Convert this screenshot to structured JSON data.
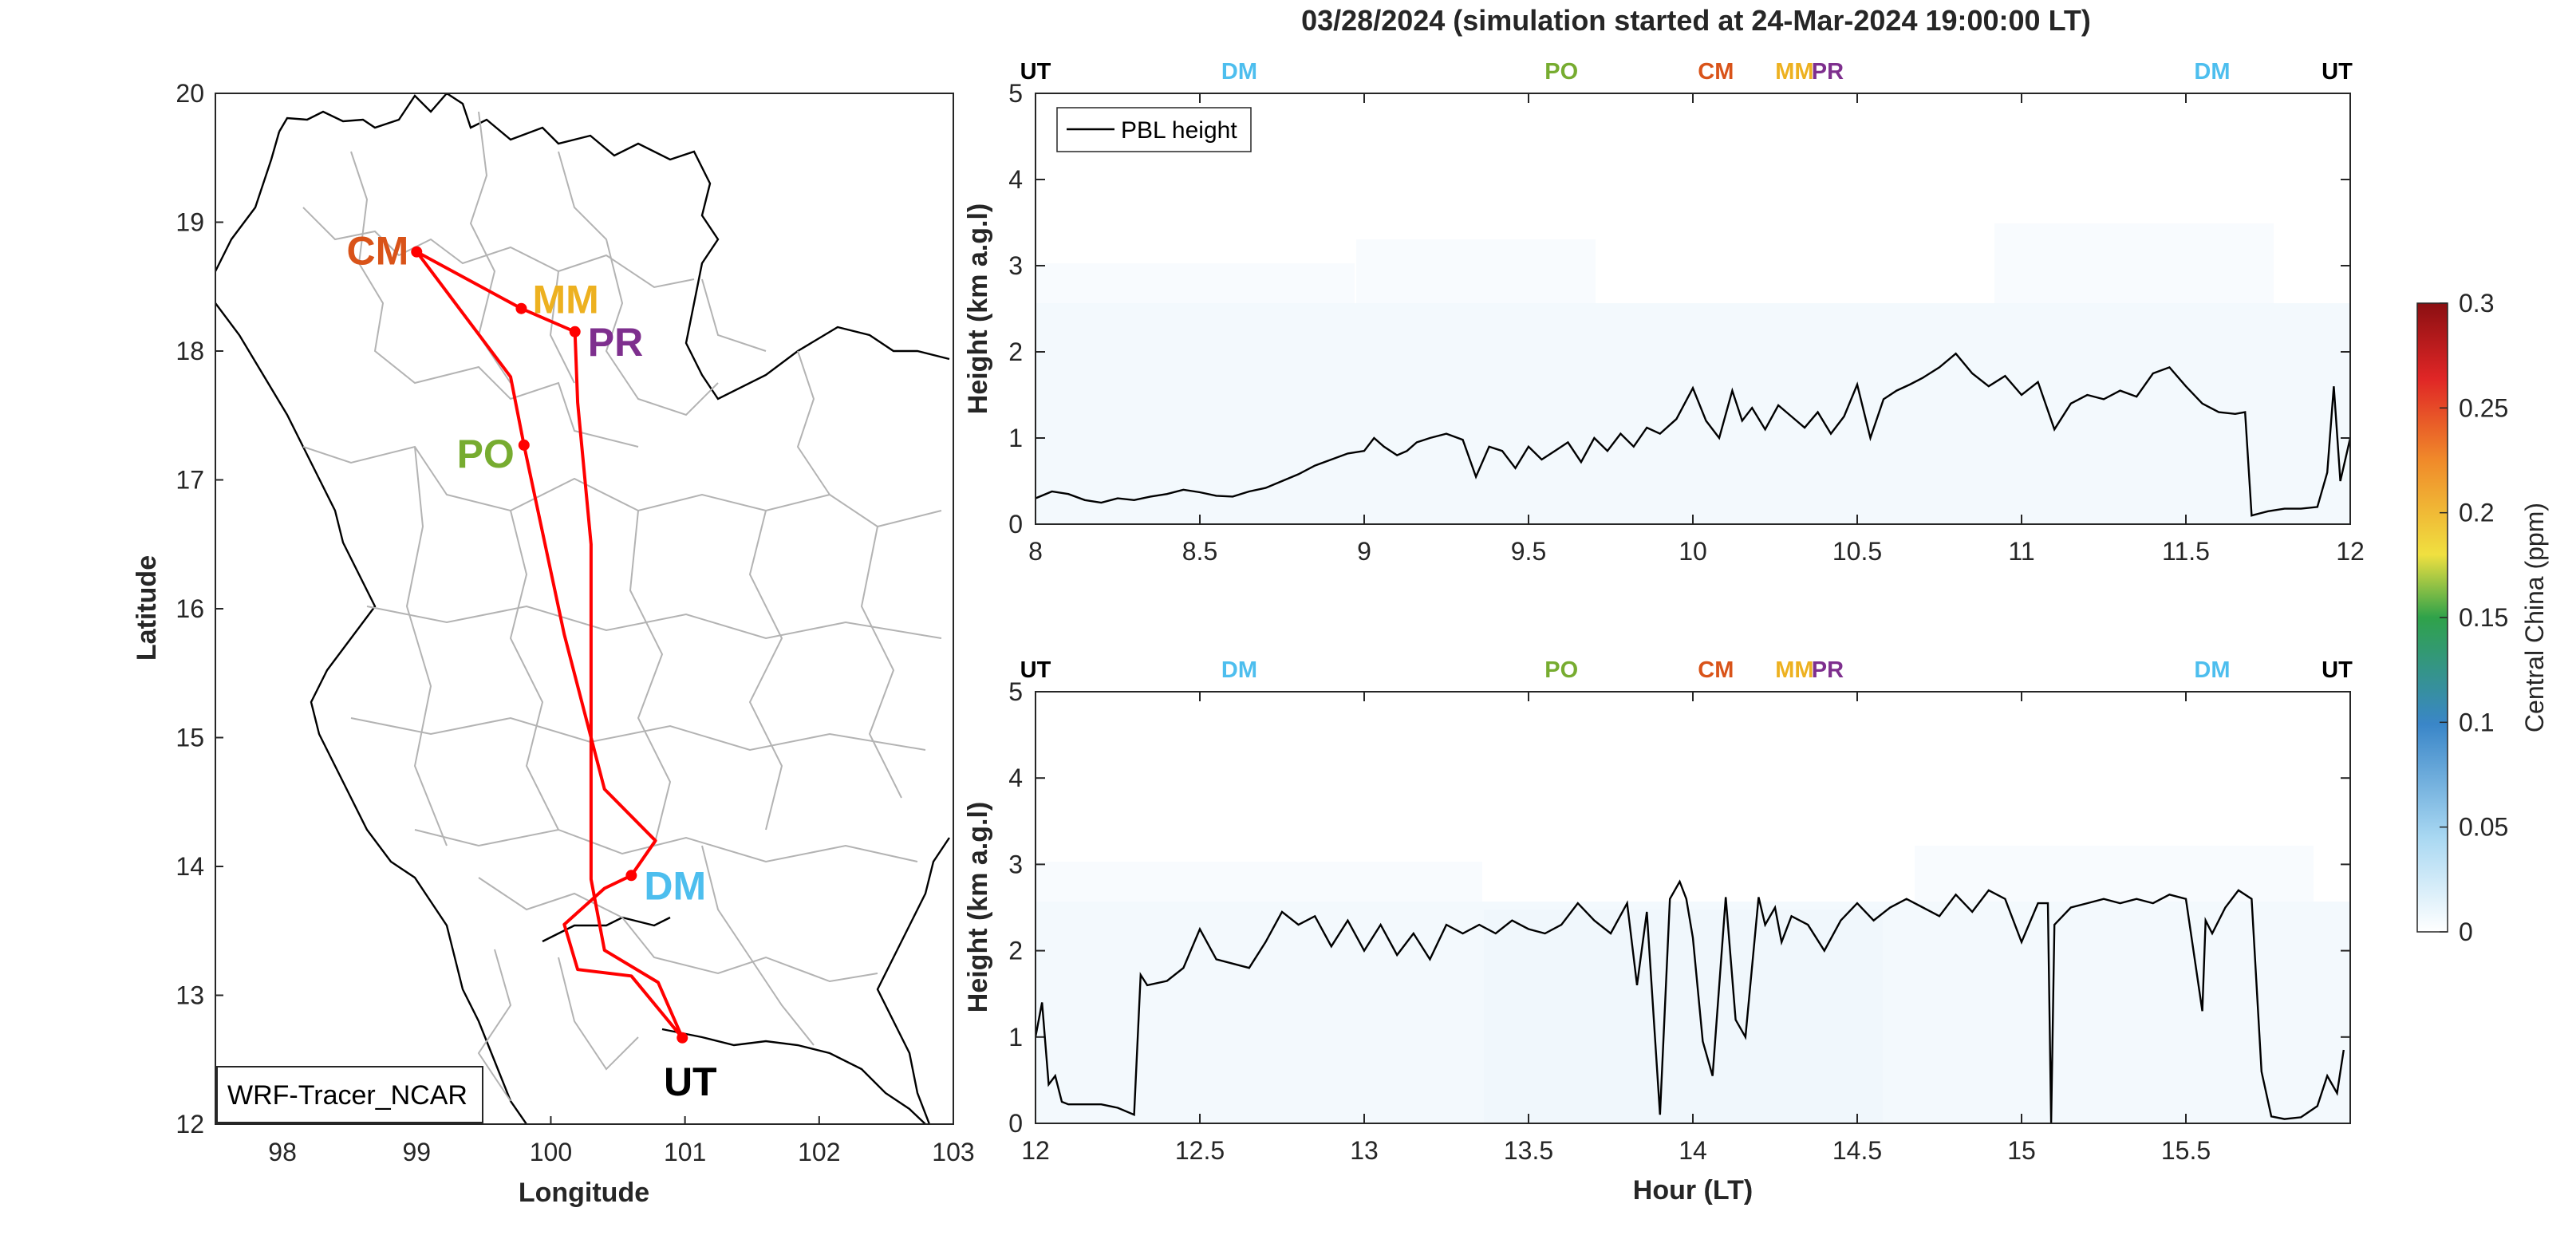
{
  "title": "03/28/2024 (simulation started at 24-Mar-2024 19:00:00 LT)",
  "colors": {
    "UT": "#000000",
    "DM": "#4DBEEE",
    "PO": "#77AC30",
    "CM": "#D95319",
    "MM": "#EDB120",
    "PR": "#7E2F8E",
    "route": "#FF0000",
    "pbl": "#000000"
  },
  "map": {
    "xlabel": "Longitude",
    "ylabel": "Latitude",
    "source_label": "WRF-Tracer_NCAR",
    "xlim": [
      97.5,
      103
    ],
    "ylim": [
      12,
      20
    ],
    "xticks": [
      "98",
      "99",
      "100",
      "101",
      "102",
      "103"
    ],
    "yticks": [
      "12",
      "13",
      "14",
      "15",
      "16",
      "17",
      "18",
      "19",
      "20"
    ],
    "sites": [
      {
        "code": "CM",
        "lon": 99.0,
        "lat": 18.77
      },
      {
        "code": "MM",
        "lon": 99.78,
        "lat": 18.33
      },
      {
        "code": "PR",
        "lon": 100.18,
        "lat": 18.15
      },
      {
        "code": "PO",
        "lon": 99.8,
        "lat": 17.27
      },
      {
        "code": "DM",
        "lon": 100.6,
        "lat": 13.93
      },
      {
        "code": "UT",
        "lon": 100.98,
        "lat": 12.67
      }
    ]
  },
  "chart_data": [
    {
      "type": "line",
      "panel": "top",
      "xlabel": "",
      "ylabel": "Height (km a.g.l)",
      "xlim": [
        8,
        12
      ],
      "ylim": [
        0,
        5
      ],
      "xticks": [
        "8",
        "8.5",
        "9",
        "9.5",
        "10",
        "10.5",
        "11",
        "11.5",
        "12"
      ],
      "yticks": [
        "0",
        "1",
        "2",
        "3",
        "4",
        "5"
      ],
      "legend": "PBL height",
      "colorbar_shading": "near zero",
      "markers": [
        {
          "label": "UT",
          "x": 8.0
        },
        {
          "label": "DM",
          "x": 8.62
        },
        {
          "label": "PO",
          "x": 9.6
        },
        {
          "label": "CM",
          "x": 10.07
        },
        {
          "label": "MM",
          "x": 10.3
        },
        {
          "label": "PR",
          "x": 10.4
        },
        {
          "label": "DM",
          "x": 11.58
        },
        {
          "label": "UT",
          "x": 11.96
        }
      ],
      "series": [
        {
          "name": "PBL height",
          "x": [
            8.0,
            8.05,
            8.1,
            8.15,
            8.2,
            8.25,
            8.3,
            8.35,
            8.4,
            8.45,
            8.5,
            8.55,
            8.6,
            8.65,
            8.7,
            8.75,
            8.8,
            8.85,
            8.9,
            8.95,
            9.0,
            9.03,
            9.06,
            9.1,
            9.13,
            9.16,
            9.2,
            9.25,
            9.3,
            9.34,
            9.38,
            9.42,
            9.46,
            9.5,
            9.54,
            9.58,
            9.62,
            9.66,
            9.7,
            9.74,
            9.78,
            9.82,
            9.86,
            9.9,
            9.95,
            10.0,
            10.04,
            10.08,
            10.12,
            10.15,
            10.18,
            10.22,
            10.26,
            10.3,
            10.34,
            10.38,
            10.42,
            10.46,
            10.5,
            10.54,
            10.58,
            10.62,
            10.66,
            10.7,
            10.75,
            10.8,
            10.85,
            10.9,
            10.95,
            11.0,
            11.05,
            11.1,
            11.15,
            11.2,
            11.25,
            11.3,
            11.35,
            11.4,
            11.45,
            11.5,
            11.55,
            11.6,
            11.65,
            11.68,
            11.7,
            11.72,
            11.75,
            11.8,
            11.85,
            11.9,
            11.93,
            11.95,
            11.97,
            12.0
          ],
          "values": [
            0.3,
            0.38,
            0.35,
            0.28,
            0.25,
            0.3,
            0.28,
            0.32,
            0.35,
            0.4,
            0.37,
            0.33,
            0.32,
            0.38,
            0.42,
            0.5,
            0.58,
            0.68,
            0.75,
            0.82,
            0.85,
            1.0,
            0.9,
            0.8,
            0.85,
            0.95,
            1.0,
            1.05,
            0.98,
            0.55,
            0.9,
            0.85,
            0.65,
            0.9,
            0.75,
            0.85,
            0.95,
            0.72,
            1.0,
            0.85,
            1.05,
            0.9,
            1.12,
            1.05,
            1.22,
            1.58,
            1.2,
            1.0,
            1.55,
            1.2,
            1.35,
            1.1,
            1.38,
            1.25,
            1.12,
            1.3,
            1.05,
            1.25,
            1.62,
            1.0,
            1.45,
            1.55,
            1.62,
            1.7,
            1.82,
            1.98,
            1.75,
            1.6,
            1.72,
            1.5,
            1.65,
            1.1,
            1.4,
            1.5,
            1.45,
            1.55,
            1.48,
            1.75,
            1.82,
            1.6,
            1.4,
            1.3,
            1.28,
            1.3,
            0.1,
            0.12,
            0.15,
            0.18,
            0.18,
            0.2,
            0.6,
            1.6,
            0.5,
            1.0
          ]
        }
      ]
    },
    {
      "type": "line",
      "panel": "bottom",
      "xlabel": "Hour (LT)",
      "ylabel": "Height (km a.g.l)",
      "xlim": [
        12,
        16
      ],
      "ylim": [
        0,
        5
      ],
      "xticks": [
        "12",
        "12.5",
        "13",
        "13.5",
        "14",
        "14.5",
        "15",
        "15.5"
      ],
      "yticks": [
        "0",
        "1",
        "2",
        "3",
        "4",
        "5"
      ],
      "colorbar_shading": "near zero",
      "markers": [
        {
          "label": "UT",
          "x": 12.0
        },
        {
          "label": "DM",
          "x": 12.62
        },
        {
          "label": "PO",
          "x": 13.6
        },
        {
          "label": "CM",
          "x": 14.07
        },
        {
          "label": "MM",
          "x": 14.3
        },
        {
          "label": "PR",
          "x": 14.4
        },
        {
          "label": "DM",
          "x": 15.58
        },
        {
          "label": "UT",
          "x": 15.96
        }
      ],
      "series": [
        {
          "name": "PBL height",
          "x": [
            12.0,
            12.02,
            12.04,
            12.06,
            12.08,
            12.1,
            12.15,
            12.2,
            12.25,
            12.3,
            12.32,
            12.34,
            12.4,
            12.45,
            12.5,
            12.55,
            12.6,
            12.65,
            12.7,
            12.75,
            12.8,
            12.85,
            12.9,
            12.95,
            13.0,
            13.05,
            13.1,
            13.15,
            13.2,
            13.25,
            13.3,
            13.35,
            13.4,
            13.45,
            13.5,
            13.55,
            13.6,
            13.65,
            13.7,
            13.75,
            13.8,
            13.83,
            13.86,
            13.9,
            13.93,
            13.96,
            13.98,
            14.0,
            14.03,
            14.06,
            14.1,
            14.13,
            14.16,
            14.2,
            14.22,
            14.25,
            14.27,
            14.3,
            14.35,
            14.4,
            14.45,
            14.5,
            14.55,
            14.6,
            14.65,
            14.7,
            14.75,
            14.8,
            14.85,
            14.9,
            14.95,
            15.0,
            15.05,
            15.08,
            15.09,
            15.1,
            15.15,
            15.2,
            15.25,
            15.3,
            15.35,
            15.4,
            15.45,
            15.5,
            15.55,
            15.56,
            15.58,
            15.62,
            15.66,
            15.7,
            15.73,
            15.76,
            15.8,
            15.85,
            15.9,
            15.93,
            15.96,
            15.98
          ],
          "values": [
            1.0,
            1.4,
            0.45,
            0.55,
            0.25,
            0.22,
            0.22,
            0.22,
            0.18,
            0.1,
            1.72,
            1.6,
            1.65,
            1.8,
            2.25,
            1.9,
            1.85,
            1.8,
            2.1,
            2.45,
            2.3,
            2.4,
            2.05,
            2.35,
            2.0,
            2.3,
            1.95,
            2.2,
            1.9,
            2.3,
            2.2,
            2.3,
            2.2,
            2.35,
            2.25,
            2.2,
            2.3,
            2.55,
            2.35,
            2.2,
            2.55,
            1.6,
            2.45,
            0.1,
            2.6,
            2.8,
            2.6,
            2.15,
            0.95,
            0.55,
            2.62,
            1.2,
            1.0,
            2.62,
            2.3,
            2.5,
            2.1,
            2.4,
            2.3,
            2.0,
            2.35,
            2.55,
            2.35,
            2.5,
            2.6,
            2.5,
            2.4,
            2.65,
            2.45,
            2.7,
            2.6,
            2.1,
            2.55,
            2.55,
            0.0,
            2.3,
            2.5,
            2.55,
            2.6,
            2.55,
            2.6,
            2.55,
            2.65,
            2.6,
            1.3,
            2.35,
            2.2,
            2.5,
            2.7,
            2.6,
            0.6,
            0.08,
            0.05,
            0.07,
            0.2,
            0.55,
            0.35,
            0.85
          ]
        }
      ]
    }
  ],
  "colorbar": {
    "label": "Central China (ppm)",
    "ticks": [
      "0",
      "0.05",
      "0.1",
      "0.15",
      "0.2",
      "0.25",
      "0.3"
    ],
    "range": [
      0,
      0.3
    ]
  }
}
